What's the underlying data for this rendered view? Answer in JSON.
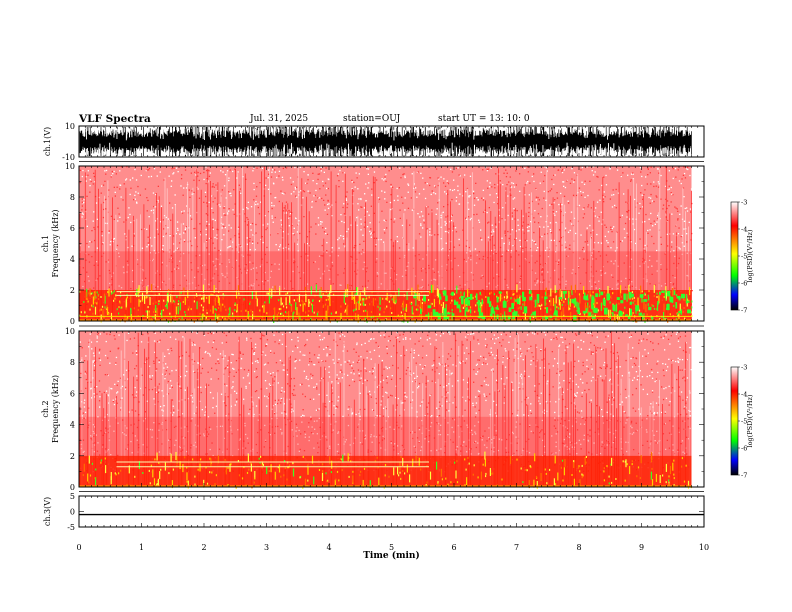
{
  "header": {
    "title": "VLF Spectra",
    "date": "Jul. 31, 2025",
    "station": "station=OUJ",
    "start": "start UT =  13: 10: 0"
  },
  "chart_data": {
    "type": "heatmap",
    "title": "VLF Spectra",
    "xlabel": "Time (min)",
    "xlim": [
      0,
      10
    ],
    "x_ticks": [
      "0",
      "1",
      "2",
      "3",
      "4",
      "5",
      "6",
      "7",
      "8",
      "9",
      "10"
    ],
    "data_end_min": 9.8,
    "panels": [
      {
        "name": "ch.1 waveform",
        "ylabel": "ch.1(V)",
        "ylim": [
          -10,
          10
        ],
        "y_ticks": [
          "10",
          "-10"
        ],
        "description_type": "waveform"
      },
      {
        "name": "ch.1 spectrogram",
        "ylabel_1": "ch.1",
        "ylabel_2": "Frequency (kHz)",
        "ylim": [
          0,
          10
        ],
        "y_ticks": [
          "0",
          "2",
          "4",
          "6",
          "8",
          "10"
        ],
        "emission_band_khz": [
          0.3,
          2.0
        ],
        "narrowband_lines_khz": [
          1.65,
          1.9,
          0.3
        ],
        "narrowband_span_min": [
          0.6,
          5.6
        ]
      },
      {
        "name": "ch.2 spectrogram",
        "ylabel_1": "ch.2",
        "ylabel_2": "Frequency (kHz)",
        "ylim": [
          0,
          10
        ],
        "y_ticks": [
          "0",
          "2",
          "4",
          "6",
          "8",
          "10"
        ],
        "emission_band_khz": [
          0.3,
          2.0
        ],
        "narrowband_lines_khz": [
          1.3,
          1.6
        ],
        "narrowband_span_min": [
          0.6,
          5.6
        ]
      },
      {
        "name": "ch.3 waveform",
        "ylabel": "ch.3(V)",
        "ylim": [
          -5,
          5
        ],
        "y_ticks": [
          "5",
          "0",
          "-5"
        ],
        "constant_value_v": -1.0
      }
    ],
    "colorbar": {
      "label": "log(PSD)(V²/Hz)",
      "range": [
        -7,
        -3
      ],
      "ticks": [
        "-3",
        "-4",
        "-5",
        "-6",
        "-7"
      ],
      "colors": [
        "#ffffff",
        "#ff0000",
        "#ffff00",
        "#00ff00",
        "#0000ff",
        "#000000"
      ]
    }
  }
}
